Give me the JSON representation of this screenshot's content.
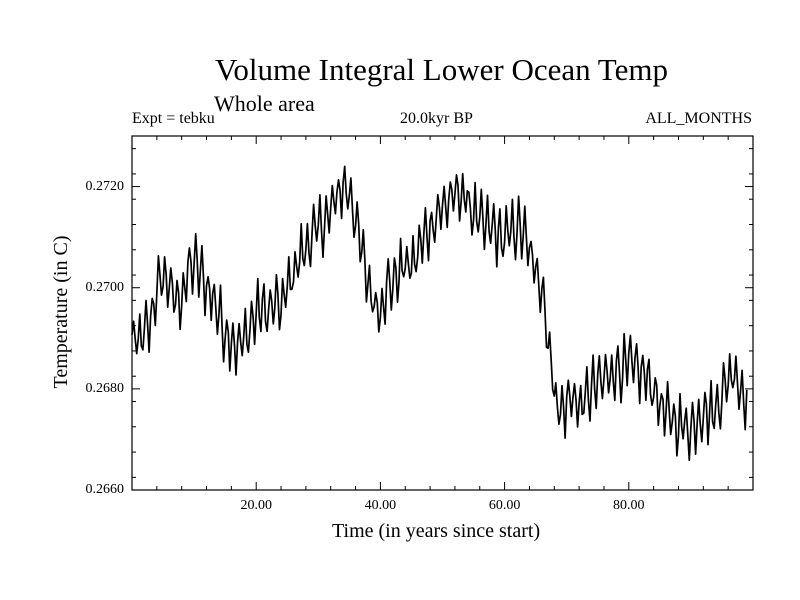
{
  "chart_data": {
    "type": "line",
    "title": "Volume Integral Lower Ocean Temp",
    "subtitle": "Whole area",
    "annotations": {
      "left": "Expt = tebku",
      "center": "20.0kyr BP",
      "right": "ALL_MONTHS"
    },
    "xlabel": "Time (in years since start)",
    "ylabel": "Temperature (in C)",
    "xlim": [
      0,
      100
    ],
    "ylim": [
      0.266,
      0.273
    ],
    "x_ticks": [
      20.0,
      40.0,
      60.0,
      80.0
    ],
    "x_tick_labels": [
      "20.00",
      "40.00",
      "60.00",
      "80.00"
    ],
    "y_ticks": [
      0.266,
      0.268,
      0.27,
      0.272
    ],
    "y_tick_labels": [
      "0.2660",
      "0.2680",
      "0.2700",
      "0.2720"
    ],
    "series": [
      {
        "name": "Volume Integral Lower Ocean Temp",
        "color": "#000000",
        "x": [
          0,
          1,
          2,
          3,
          4,
          5,
          6,
          7,
          8,
          9,
          10,
          11,
          12,
          13,
          14,
          15,
          16,
          17,
          18,
          19,
          20,
          21,
          22,
          23,
          24,
          25,
          26,
          27,
          28,
          29,
          30,
          31,
          32,
          33,
          34,
          35,
          36,
          37,
          38,
          39,
          40,
          41,
          42,
          43,
          44,
          45,
          46,
          47,
          48,
          49,
          50,
          51,
          52,
          53,
          54,
          55,
          56,
          57,
          58,
          59,
          60,
          61,
          62,
          63,
          64,
          65,
          66,
          67,
          68,
          69,
          70,
          71,
          72,
          73,
          74,
          75,
          76,
          77,
          78,
          79,
          80,
          81,
          82,
          83,
          84,
          85,
          86,
          87,
          88,
          89,
          90,
          91,
          92,
          93,
          94,
          95,
          96,
          97,
          98,
          99
        ],
        "y": [
          0.269,
          0.2689,
          0.2691,
          0.2693,
          0.27,
          0.2702,
          0.2701,
          0.2697,
          0.2698,
          0.2703,
          0.2705,
          0.2703,
          0.27,
          0.2698,
          0.2695,
          0.2691,
          0.269,
          0.2688,
          0.269,
          0.2692,
          0.2695,
          0.2696,
          0.2695,
          0.2697,
          0.2696,
          0.27,
          0.2703,
          0.2706,
          0.2708,
          0.271,
          0.2712,
          0.2713,
          0.2715,
          0.2718,
          0.272,
          0.2719,
          0.2714,
          0.2707,
          0.2701,
          0.2697,
          0.2696,
          0.27,
          0.2701,
          0.2703,
          0.2705,
          0.2704,
          0.2707,
          0.271,
          0.2712,
          0.2714,
          0.2716,
          0.2717,
          0.2718,
          0.2719,
          0.2717,
          0.2715,
          0.2713,
          0.2712,
          0.2712,
          0.271,
          0.271,
          0.2711,
          0.2712,
          0.2711,
          0.2707,
          0.2703,
          0.2701,
          0.269,
          0.268,
          0.2675,
          0.2677,
          0.2679,
          0.2676,
          0.2678,
          0.268,
          0.2681,
          0.2682,
          0.2683,
          0.2684,
          0.2684,
          0.2685,
          0.2684,
          0.2683,
          0.2682,
          0.268,
          0.2677,
          0.2675,
          0.2674,
          0.2673,
          0.2673,
          0.2672,
          0.2674,
          0.2676,
          0.2675,
          0.2676,
          0.2679,
          0.2682,
          0.2684,
          0.268,
          0.2678
        ]
      }
    ]
  }
}
